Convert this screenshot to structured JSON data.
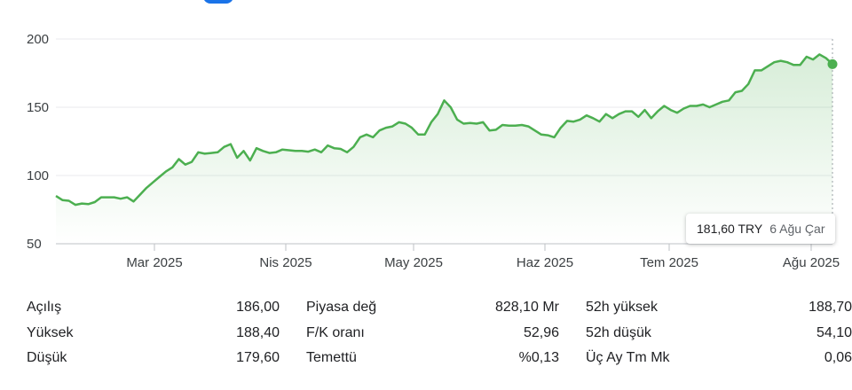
{
  "chart_data": {
    "type": "area",
    "color": "#4caf50",
    "ylim": [
      50,
      200
    ],
    "y_ticks": [
      "50",
      "100",
      "150",
      "200"
    ],
    "x_ticks": [
      "Mar 2025",
      "Nis 2025",
      "May 2025",
      "Haz 2025",
      "Tem 2025",
      "Ağu 2025"
    ],
    "tooltip": {
      "price": "181,60 TRY",
      "date": "6 Ağu Çar"
    },
    "values": [
      85,
      82,
      81.5,
      78.5,
      79.5,
      79,
      80.5,
      84,
      84,
      84,
      83,
      84,
      81,
      86,
      91,
      95,
      99,
      103,
      106,
      112,
      108,
      110,
      117,
      116,
      116.5,
      117,
      121,
      123,
      113,
      118,
      111,
      120,
      118,
      116.5,
      117,
      119,
      118.5,
      118,
      118,
      117.5,
      119,
      117,
      122,
      120,
      119.5,
      117,
      121,
      128,
      130,
      128,
      133,
      135,
      136,
      139,
      138,
      135,
      130,
      130,
      139,
      145,
      155,
      150,
      141,
      138,
      138.5,
      138,
      139,
      133,
      133.5,
      137,
      136.5,
      136.5,
      137,
      136,
      133,
      130,
      129.5,
      128,
      135,
      140,
      139.5,
      141,
      144,
      142,
      139.5,
      145,
      142,
      145,
      147,
      147,
      143,
      148,
      142,
      147,
      151,
      148,
      146,
      149,
      151,
      151,
      152,
      150,
      152,
      154,
      155,
      161,
      162,
      167,
      177,
      177,
      180,
      183,
      184,
      183,
      181,
      181,
      187,
      185,
      188.7,
      186,
      181.6
    ]
  },
  "stats": {
    "col1": [
      {
        "label": "Açılış",
        "value": "186,00"
      },
      {
        "label": "Yüksek",
        "value": "188,40"
      },
      {
        "label": "Düşük",
        "value": "179,60"
      }
    ],
    "col2": [
      {
        "label": "Piyasa değ",
        "value": "828,10 Mr"
      },
      {
        "label": "F/K oranı",
        "value": "52,96"
      },
      {
        "label": "Temettü",
        "value": "%0,13"
      }
    ],
    "col3": [
      {
        "label": "52h yüksek",
        "value": "188,70"
      },
      {
        "label": "52h düşük",
        "value": "54,10"
      },
      {
        "label": "Üç Ay Tm Mk",
        "value": "0,06"
      }
    ]
  }
}
